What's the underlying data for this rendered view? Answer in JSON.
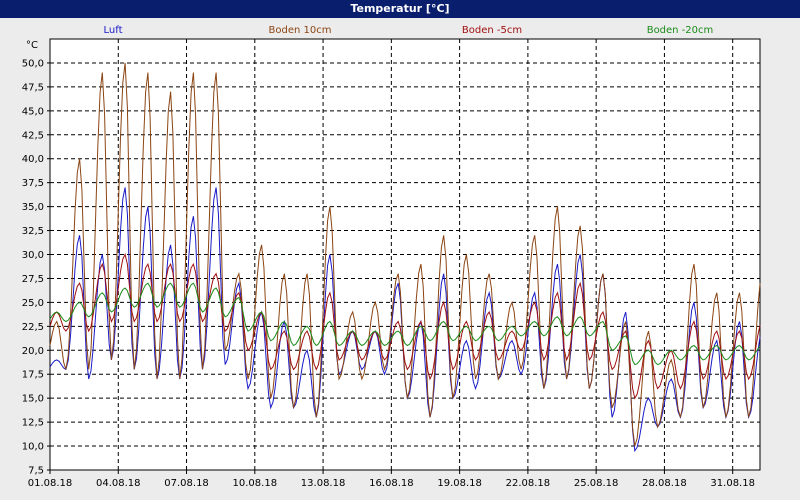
{
  "window": {
    "title": "Temperatur [°C]"
  },
  "chart_data": {
    "type": "line",
    "title": "Temperatur [°C]",
    "ylabel": "°C",
    "xlabel": "",
    "ylim": [
      7.5,
      52.5
    ],
    "xlim": [
      0,
      31.2
    ],
    "yticks": [
      7.5,
      10.0,
      12.5,
      15.0,
      17.5,
      20.0,
      22.5,
      25.0,
      27.5,
      30.0,
      32.5,
      35.0,
      37.5,
      40.0,
      42.5,
      45.0,
      47.5,
      50.0
    ],
    "ytick_labels": [
      "7,5",
      "10,0",
      "12,5",
      "15,0",
      "17,5",
      "20,0",
      "22,5",
      "25,0",
      "27,5",
      "30,0",
      "32,5",
      "35,0",
      "37,5",
      "40,0",
      "42,5",
      "45,0",
      "47,5",
      "50,0"
    ],
    "xticks": [
      0,
      3,
      6,
      9,
      12,
      15,
      18,
      21,
      24,
      27,
      30
    ],
    "xtick_labels": [
      "01.08.18",
      "04.08.18",
      "07.08.18",
      "10.08.18",
      "13.08.18",
      "16.08.18",
      "19.08.18",
      "22.08.18",
      "25.08.18",
      "28.08.18",
      "31.08.18"
    ],
    "grid": true,
    "legend_position": "top",
    "day_peak_offset": 0.6,
    "series": [
      {
        "name": "Luft",
        "color": "#1a1ac8",
        "daily_max": [
          19,
          32,
          30,
          37,
          35,
          31,
          34,
          37,
          27,
          24,
          23,
          20,
          30,
          22,
          22,
          27,
          23,
          28,
          21,
          26,
          21,
          26,
          29,
          30,
          28,
          24,
          15,
          17,
          25,
          21,
          23,
          22
        ],
        "daily_min": [
          17.5,
          18,
          17,
          19,
          18,
          17,
          17,
          18,
          18.5,
          16,
          14,
          14,
          13,
          17.5,
          18,
          17.5,
          15,
          13,
          15,
          16,
          17,
          17.5,
          16,
          17,
          16,
          13,
          9.5,
          12,
          13,
          14,
          13,
          13
        ]
      },
      {
        "name": "Boden 10cm",
        "color": "#8b4513",
        "daily_max": [
          23,
          40,
          49,
          50,
          49,
          47,
          49,
          49,
          28,
          31,
          28,
          28,
          35,
          24,
          25,
          28,
          29,
          32,
          30,
          28,
          25,
          32,
          35,
          33,
          28,
          23,
          22,
          19,
          29,
          26,
          26,
          28
        ],
        "daily_min": [
          18,
          18,
          18,
          19,
          18,
          17,
          17,
          18,
          20,
          17,
          15,
          14,
          13,
          17,
          17,
          18,
          15,
          13,
          15,
          17,
          17,
          18,
          16,
          17,
          16,
          14,
          10,
          12,
          13,
          14,
          13,
          13
        ]
      },
      {
        "name": "Boden -5cm",
        "color": "#a01010",
        "daily_max": [
          24,
          27,
          29,
          30,
          29,
          29,
          29,
          28,
          26,
          24,
          22,
          22,
          26,
          22,
          22,
          23,
          23,
          25,
          23,
          24,
          22,
          25,
          26,
          27,
          24,
          22,
          21,
          20,
          23,
          22,
          22,
          23
        ],
        "daily_min": [
          21,
          22,
          22,
          23,
          23,
          23,
          23,
          23,
          22,
          20,
          18,
          18,
          18,
          19,
          19,
          19,
          18,
          17,
          18,
          19,
          19,
          20,
          19,
          19,
          19,
          18,
          15,
          16,
          16,
          17,
          17,
          17
        ]
      },
      {
        "name": "Boden -20cm",
        "color": "#1a8c1a",
        "daily_max": [
          24,
          25,
          26,
          26.5,
          27,
          27,
          27,
          26.5,
          25.5,
          24,
          23,
          22.5,
          23,
          22,
          22,
          22,
          22.5,
          23,
          22.5,
          22.5,
          22.5,
          23,
          23.5,
          23.5,
          23,
          21.5,
          20,
          20,
          20.5,
          20.5,
          20.5,
          20.5
        ],
        "daily_min": [
          22.5,
          23,
          23.5,
          24,
          24.5,
          24.5,
          24.5,
          24,
          23.5,
          22,
          21,
          20.5,
          20.5,
          20.5,
          20.5,
          20.5,
          20.5,
          21,
          21,
          21,
          21,
          21.5,
          21.5,
          21.5,
          21.5,
          20,
          18.5,
          18.5,
          19,
          19,
          19,
          19
        ]
      }
    ]
  }
}
